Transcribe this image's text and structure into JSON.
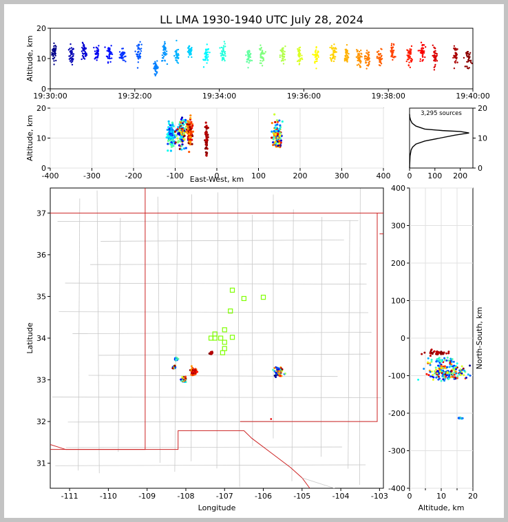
{
  "title": "LL LMA 1930-1940 UTC July 28, 2024",
  "colors": {
    "frame": "#c3c3c3",
    "panel": "#ffffff",
    "border": "#c0392b",
    "county": "#bdbdbd",
    "station": "#7fff00"
  },
  "chart_data": [
    {
      "id": "time_height",
      "type": "scatter",
      "ylabel": "Altitude, km",
      "xlabel": "",
      "xlim": [
        "19:30:00",
        "19:40:00"
      ],
      "ylim": [
        0,
        20
      ],
      "xticks": [
        "19:30:00",
        "19:32:00",
        "19:34:00",
        "19:36:00",
        "19:38:00",
        "19:40:00"
      ],
      "yticks": [
        0,
        10,
        20
      ],
      "color_by": "time",
      "colormap": "jet",
      "bursts": [
        {
          "t": 0.1,
          "alt": 12,
          "spread": 3
        },
        {
          "t": 0.5,
          "alt": 11,
          "spread": 3
        },
        {
          "t": 0.8,
          "alt": 12,
          "spread": 3
        },
        {
          "t": 1.1,
          "alt": 12,
          "spread": 3
        },
        {
          "t": 1.4,
          "alt": 12,
          "spread": 3
        },
        {
          "t": 1.7,
          "alt": 11,
          "spread": 2
        },
        {
          "t": 2.1,
          "alt": 12,
          "spread": 3
        },
        {
          "t": 2.5,
          "alt": 7,
          "spread": 2
        },
        {
          "t": 2.7,
          "alt": 12,
          "spread": 3
        },
        {
          "t": 3.0,
          "alt": 11,
          "spread": 3
        },
        {
          "t": 3.3,
          "alt": 12,
          "spread": 2
        },
        {
          "t": 3.7,
          "alt": 11,
          "spread": 3
        },
        {
          "t": 4.1,
          "alt": 12,
          "spread": 3
        },
        {
          "t": 4.7,
          "alt": 11,
          "spread": 2
        },
        {
          "t": 5.0,
          "alt": 11,
          "spread": 3
        },
        {
          "t": 5.5,
          "alt": 11,
          "spread": 3
        },
        {
          "t": 5.9,
          "alt": 11,
          "spread": 4
        },
        {
          "t": 6.3,
          "alt": 11,
          "spread": 3
        },
        {
          "t": 6.7,
          "alt": 12,
          "spread": 3
        },
        {
          "t": 7.0,
          "alt": 11,
          "spread": 3
        },
        {
          "t": 7.3,
          "alt": 10,
          "spread": 3
        },
        {
          "t": 7.5,
          "alt": 10,
          "spread": 3
        },
        {
          "t": 7.8,
          "alt": 10,
          "spread": 3
        },
        {
          "t": 8.1,
          "alt": 12,
          "spread": 3
        },
        {
          "t": 8.5,
          "alt": 11,
          "spread": 3
        },
        {
          "t": 8.8,
          "alt": 12,
          "spread": 3
        },
        {
          "t": 9.1,
          "alt": 11,
          "spread": 3
        },
        {
          "t": 9.6,
          "alt": 11,
          "spread": 3
        },
        {
          "t": 9.9,
          "alt": 10,
          "spread": 3
        }
      ]
    },
    {
      "id": "east_west_height",
      "type": "scatter",
      "xlabel": "East-West, km",
      "ylabel": "Altitude, km",
      "xlim": [
        -400,
        400
      ],
      "ylim": [
        0,
        20
      ],
      "xticks": [
        -400,
        -300,
        -200,
        -100,
        0,
        100,
        200,
        300,
        400
      ],
      "yticks": [
        0,
        10,
        20
      ],
      "clusters": [
        {
          "x": -110,
          "alt": 11,
          "sx": 8,
          "color": "cool"
        },
        {
          "x": -85,
          "alt": 12,
          "sx": 12,
          "color": "mixed"
        },
        {
          "x": -65,
          "alt": 12,
          "sx": 6,
          "color": "warm"
        },
        {
          "x": -25,
          "alt": 9,
          "sx": 4,
          "color": "dark"
        },
        {
          "x": 145,
          "alt": 11,
          "sx": 10,
          "color": "mixed"
        }
      ]
    },
    {
      "id": "altitude_histogram",
      "type": "line",
      "annotation": "3,295 sources",
      "xlim": [
        0,
        250
      ],
      "ylim": [
        0,
        20
      ],
      "xticks": [
        0,
        100,
        200
      ],
      "yticks": [
        0,
        10,
        20
      ],
      "profile": [
        [
          0,
          0
        ],
        [
          2,
          4
        ],
        [
          6,
          6
        ],
        [
          12,
          7
        ],
        [
          25,
          8
        ],
        [
          60,
          9
        ],
        [
          120,
          10
        ],
        [
          180,
          11
        ],
        [
          235,
          11.7
        ],
        [
          200,
          12.2
        ],
        [
          130,
          12.5
        ],
        [
          60,
          13
        ],
        [
          25,
          14
        ],
        [
          10,
          15
        ],
        [
          4,
          16
        ],
        [
          1,
          17
        ],
        [
          0,
          18
        ]
      ]
    },
    {
      "id": "plan_view",
      "type": "scatter",
      "xlabel": "Longitude",
      "ylabel": "Latitude",
      "xlim": [
        -111.5,
        -102.9
      ],
      "ylim": [
        30.4,
        37.6
      ],
      "xticks": [
        -111,
        -110,
        -109,
        -108,
        -107,
        -106,
        -105,
        -104,
        -103
      ],
      "yticks": [
        31,
        32,
        33,
        34,
        35,
        36,
        37
      ],
      "stations": [
        [
          -106.8,
          35.15
        ],
        [
          -106.5,
          34.95
        ],
        [
          -106.0,
          34.98
        ],
        [
          -106.85,
          34.65
        ],
        [
          -107.0,
          34.2
        ],
        [
          -107.25,
          34.1
        ],
        [
          -107.35,
          34.0
        ],
        [
          -107.1,
          34.0
        ],
        [
          -107.0,
          33.9
        ],
        [
          -106.8,
          34.02
        ],
        [
          -107.0,
          33.75
        ],
        [
          -107.05,
          33.65
        ],
        [
          -107.25,
          34.0
        ]
      ],
      "clusters": [
        {
          "lon": -107.8,
          "lat": 33.2,
          "s": 0.09,
          "color": "warm"
        },
        {
          "lon": -108.05,
          "lat": 33.0,
          "s": 0.06,
          "color": "mixed"
        },
        {
          "lon": -108.3,
          "lat": 33.3,
          "s": 0.03,
          "color": "mixed"
        },
        {
          "lon": -107.35,
          "lat": 33.63,
          "s": 0.03,
          "color": "dark"
        },
        {
          "lon": -105.6,
          "lat": 33.2,
          "s": 0.1,
          "color": "mixed"
        },
        {
          "lon": -108.25,
          "lat": 33.5,
          "s": 0.03,
          "color": "cool"
        }
      ]
    },
    {
      "id": "height_north_south",
      "type": "scatter",
      "xlabel": "Altitude, km",
      "ylabel": "North-South, km",
      "xlim": [
        0,
        20
      ],
      "ylim": [
        -400,
        400
      ],
      "xticks": [
        0,
        5,
        10,
        15,
        20
      ],
      "yticks": [
        -400,
        -300,
        -200,
        -100,
        0,
        100,
        200,
        300,
        400
      ],
      "clusters": [
        {
          "alt": 12,
          "y": -90,
          "sa": 3,
          "sy": 12,
          "color": "mixed"
        },
        {
          "alt": 9,
          "y": -40,
          "sa": 2,
          "sy": 3,
          "color": "dark"
        },
        {
          "alt": 10,
          "y": -58,
          "sa": 2,
          "sy": 4,
          "color": "cool"
        },
        {
          "alt": 16,
          "y": -213,
          "sa": 0.3,
          "sy": 1,
          "color": "cool"
        }
      ]
    }
  ]
}
